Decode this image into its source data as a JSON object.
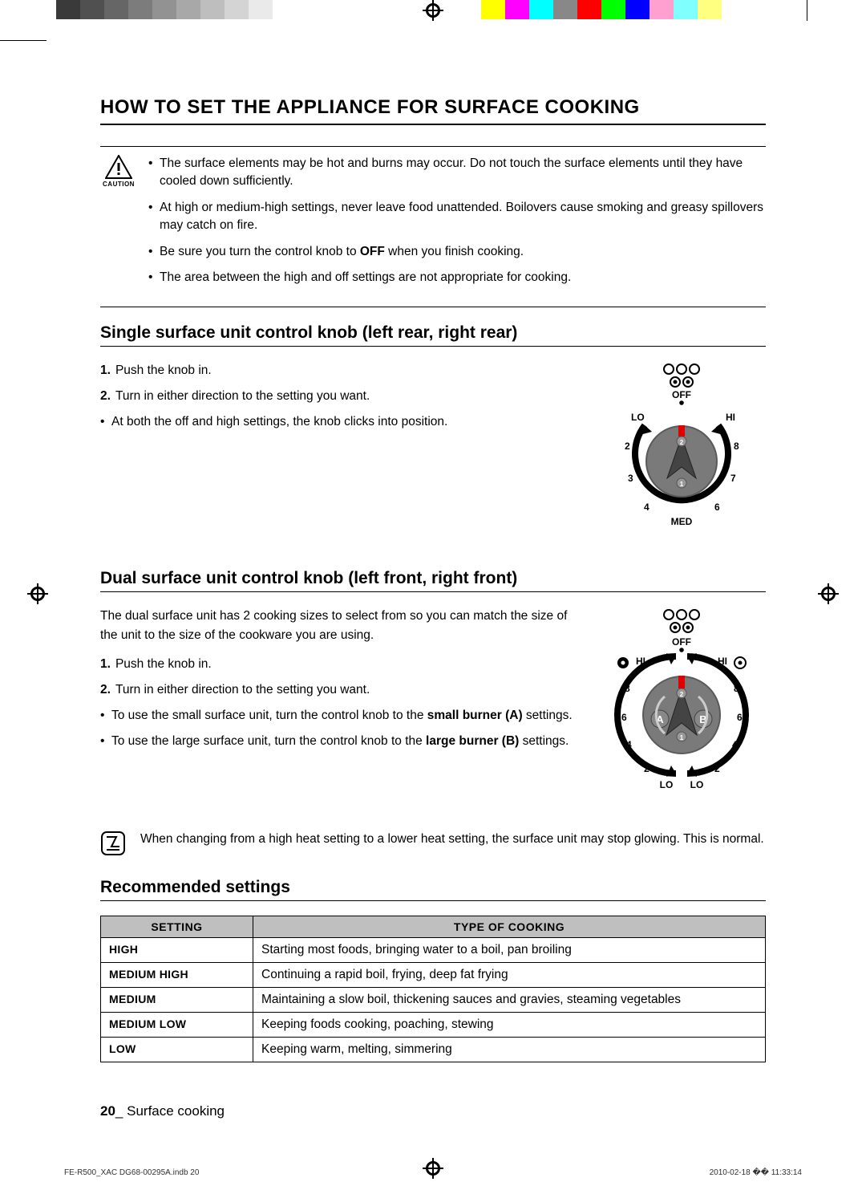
{
  "print_bars": {
    "left_gray": [
      "#3a3a3a",
      "#505050",
      "#666666",
      "#7c7c7c",
      "#929292",
      "#a8a8a8",
      "#bebebe",
      "#d4d4d4",
      "#eaeaea",
      "#ffffff"
    ],
    "right_color": [
      "#ffff00",
      "#ff00ff",
      "#00ffff",
      "#888888",
      "#ff0000",
      "#00ff00",
      "#0000ff",
      "#ffa0d0",
      "#80ffff",
      "#ffff80"
    ],
    "center_reg_stroke": "#000000"
  },
  "title": "HOW TO SET THE APPLIANCE FOR SURFACE COOKING",
  "caution": {
    "label": "CAUTION",
    "items": [
      "The surface elements may be hot and burns may occur. Do not touch the surface elements until they have cooled down sufficiently.",
      "At high or medium-high settings, never leave food unattended. Boilovers cause smoking and greasy spillovers may catch on fire.",
      "Be sure you turn the control knob to OFF when you finish cooking.",
      "The area between the high and off settings are not appropriate for cooking."
    ]
  },
  "single": {
    "title": "Single surface unit control knob (left rear, right rear)",
    "steps": [
      "Push the knob in.",
      "Turn in either direction to the setting you want."
    ],
    "note": "At both the off and high settings, the knob clicks into position.",
    "knob": {
      "top_label": "OFF",
      "bottom_label": "MED",
      "left": [
        "LO",
        "2",
        "3",
        "4"
      ],
      "right": [
        "HI",
        "8",
        "7",
        "6"
      ],
      "body_color": "#7a7a7a",
      "arrow_color": "#e00000",
      "ring_color": "#000000",
      "text_color": "#000000"
    }
  },
  "dual": {
    "title": "Dual surface unit control knob (left front, right front)",
    "intro": "The dual surface unit has 2 cooking sizes to select from so you can match the size of the unit to the size of the cookware you are using.",
    "steps": [
      "Push the knob in.",
      "Turn in either direction to the setting you want."
    ],
    "bullets": [
      {
        "pre": "To use the small surface unit, turn the control knob to the ",
        "bold": "small burner (A)",
        "post": " settings."
      },
      {
        "pre": "To use the large surface unit, turn the control knob to the ",
        "bold": "large burner (B)",
        "post": " settings."
      }
    ],
    "knob": {
      "top_label": "OFF",
      "hi_label": "HI",
      "lo_label": "LO",
      "left": [
        "8",
        "6",
        "4",
        "2"
      ],
      "right": [
        "8",
        "6",
        "4",
        "2"
      ],
      "A": "A",
      "B": "B",
      "body_color": "#7a7a7a",
      "arrow_color": "#e00000",
      "ring_color": "#000000"
    }
  },
  "change_note": "When changing from a high heat setting to a lower heat setting, the surface unit may stop glowing. This is normal.",
  "rec": {
    "title": "Recommended settings",
    "columns": [
      "SETTING",
      "TYPE OF COOKING"
    ],
    "rows": [
      [
        "HIGH",
        "Starting most foods, bringing water to a boil, pan broiling"
      ],
      [
        "MEDIUM HIGH",
        "Continuing a rapid boil, frying, deep fat frying"
      ],
      [
        "MEDIUM",
        "Maintaining a slow boil, thickening sauces and gravies, steaming vegetables"
      ],
      [
        "MEDIUM LOW",
        "Keeping foods cooking, poaching, stewing"
      ],
      [
        "LOW",
        "Keeping warm, melting, simmering"
      ]
    ]
  },
  "footer": {
    "page": "20",
    "sep": "_ ",
    "section": "Surface cooking"
  },
  "print_footer": {
    "left": "FE-R500_XAC DG68-00295A.indb   20",
    "right": "2010-02-18   �� 11:33:14"
  }
}
